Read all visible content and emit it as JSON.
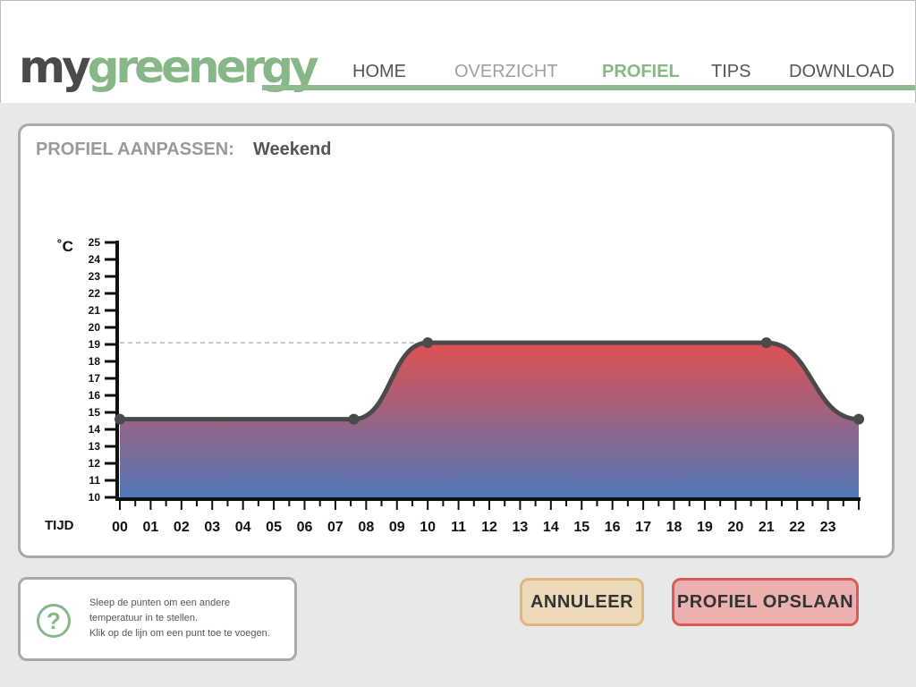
{
  "app": {
    "logo_part1": "my",
    "logo_part2": "greenergy"
  },
  "nav": {
    "items": [
      {
        "label": "HOME",
        "state": "normal"
      },
      {
        "label": "OVERZICHT",
        "state": "muted"
      },
      {
        "label": "PROFIEL",
        "state": "active"
      },
      {
        "label": "TIPS",
        "state": "normal"
      },
      {
        "label": "DOWNLOAD",
        "state": "normal"
      }
    ]
  },
  "panel": {
    "label": "PROFIEL AANPASSEN:",
    "profile_name": "Weekend"
  },
  "help": {
    "icon": "question-mark-icon",
    "lines": [
      "Sleep de punten om een andere",
      "temperatuur in te stellen.",
      "Klik op de lijn om een punt toe te voegen."
    ]
  },
  "buttons": {
    "cancel_label": "ANNULEER",
    "save_label": "PROFIEL OPSLAAN"
  },
  "colors": {
    "brand_green": "#86b887",
    "fill_top": "#e05050",
    "fill_bottom": "#5078b8",
    "cancel_border": "#e0b77a",
    "save_border": "#db5a5a"
  },
  "chart_data": {
    "type": "area",
    "xlabel": "TIJD",
    "ylabel": "˚C",
    "xlim": [
      0,
      24
    ],
    "ylim": [
      10,
      25
    ],
    "x_ticks": [
      "00",
      "01",
      "02",
      "03",
      "04",
      "05",
      "06",
      "07",
      "08",
      "09",
      "10",
      "11",
      "12",
      "13",
      "14",
      "15",
      "16",
      "17",
      "18",
      "19",
      "20",
      "21",
      "22",
      "23"
    ],
    "y_ticks": [
      10,
      11,
      12,
      13,
      14,
      15,
      16,
      17,
      18,
      19,
      20,
      21,
      22,
      23,
      24,
      25
    ],
    "points": [
      {
        "x": 0,
        "y": 14.6
      },
      {
        "x": 7.6,
        "y": 14.6
      },
      {
        "x": 10,
        "y": 19.1
      },
      {
        "x": 21,
        "y": 19.1
      },
      {
        "x": 24,
        "y": 14.6
      }
    ],
    "reference_value": 19.1
  }
}
